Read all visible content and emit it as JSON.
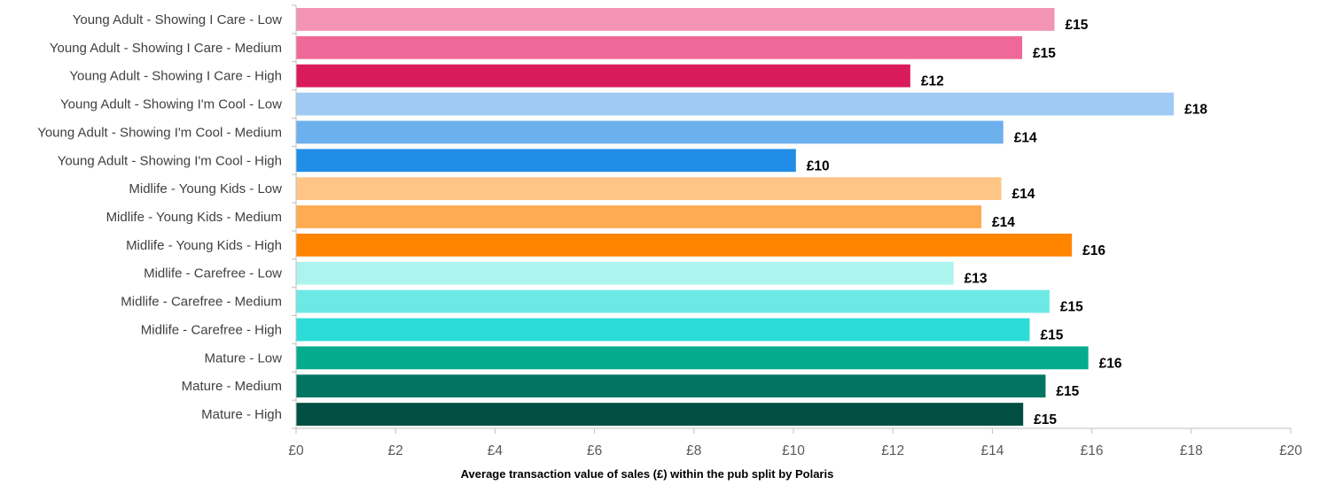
{
  "chart_data": {
    "type": "bar",
    "orientation": "horizontal",
    "title": "",
    "xlabel": "Average transaction value of sales (£) within the pub split by Polaris",
    "ylabel": "",
    "xlim": [
      0,
      20
    ],
    "x_ticks": [
      0,
      2,
      4,
      6,
      8,
      10,
      12,
      14,
      16,
      18,
      20
    ],
    "x_tick_labels": [
      "£0",
      "£2",
      "£4",
      "£6",
      "£8",
      "£10",
      "£12",
      "£14",
      "£16",
      "£18",
      "£20"
    ],
    "grid": false,
    "legend": "none",
    "categories": [
      "Young Adult - Showing I Care - Low",
      "Young Adult - Showing I Care - Medium",
      "Young Adult - Showing I Care - High",
      "Young Adult - Showing I'm Cool - Low",
      "Young Adult - Showing I'm Cool - Medium",
      "Young Adult - Showing I'm Cool - High",
      "Midlife - Young Kids - Low",
      "Midlife - Young Kids - Medium",
      "Midlife - Young Kids - High",
      "Midlife - Carefree - Low",
      "Midlife - Carefree - Medium",
      "Midlife - Carefree - High",
      "Mature - Low",
      "Mature - Medium",
      "Mature - High"
    ],
    "values": [
      15.25,
      14.6,
      12.35,
      17.65,
      14.22,
      10.05,
      14.18,
      13.78,
      15.6,
      13.22,
      15.15,
      14.75,
      15.93,
      15.07,
      14.62
    ],
    "data_labels": [
      "£15",
      "£15",
      "£12",
      "£18",
      "£14",
      "£10",
      "£14",
      "£14",
      "£16",
      "£13",
      "£15",
      "£15",
      "£16",
      "£15",
      "£15"
    ],
    "colors": [
      "#F394B5",
      "#EF6898",
      "#D91B5C",
      "#9FCAF4",
      "#6CB0EE",
      "#208DE6",
      "#FFC586",
      "#FFAB52",
      "#FF8500",
      "#AEF4EE",
      "#6CE9E4",
      "#2CDDD7",
      "#04AB8C",
      "#027561",
      "#004F42"
    ],
    "axis_color": "#BFBFBF"
  }
}
